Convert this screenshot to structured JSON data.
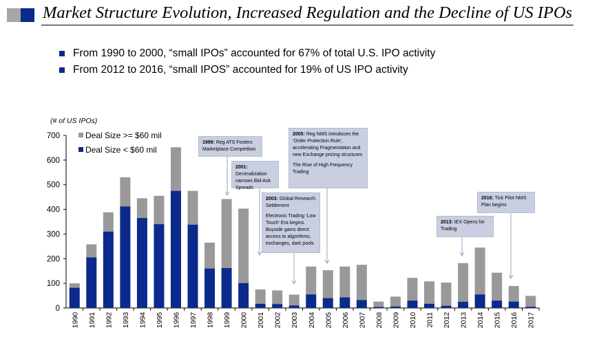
{
  "header": {
    "title": "Market Structure Evolution, Increased Regulation and the Decline of US IPOs"
  },
  "bullets": [
    "From 1990 to 2000, “small IPOs” accounted for 67% of total U.S. IPO activity",
    "From 2012 to 2016, “small IPOS” accounted for 19% of US IPO activity"
  ],
  "colors": {
    "small": "#0c2a8c",
    "large": "#999999",
    "note_bg": "#c9cfe1"
  },
  "annotations": [
    {
      "year": "1999:",
      "text": "Reg ATS Fosters Marketplace Competition"
    },
    {
      "year": "2001:",
      "text": "Decimalization narrows Bid-Ask Spreads"
    },
    {
      "year": "2003:",
      "text": "Global Research Settlement",
      "text2": "Electronic Trading ‘Low Touch’ Era begins. Buyside gains direct access to algorithms, exchanges, dark pools"
    },
    {
      "year": "2005:",
      "text": "Reg NMS introduces the ‘Order Protection Rule’, accelerating Fragmentation and new Exchange pricing structures",
      "text2": "The Rise of High Frequency Trading"
    },
    {
      "year": "2013:",
      "text": "IEX Opens for Trading"
    },
    {
      "year": "2016:",
      "text": "Tick Pilot NMS Plan begins"
    }
  ],
  "chart_data": {
    "type": "bar",
    "stacked": true,
    "ylabel": "(# of US IPOs)",
    "ylim": [
      0,
      700
    ],
    "yticks": [
      "0",
      "100",
      "200",
      "300",
      "400",
      "500",
      "600",
      "700"
    ],
    "categories": [
      "1990",
      "1991",
      "1992",
      "1993",
      "1994",
      "1995",
      "1996",
      "1997",
      "1998",
      "1999",
      "2000",
      "2001",
      "2002",
      "2003",
      "2004",
      "2005",
      "2006",
      "2007",
      "2008",
      "2009",
      "2010",
      "2011",
      "2012",
      "2013",
      "2014",
      "2015",
      "2016",
      "2017"
    ],
    "legend_position": "top-left",
    "series": [
      {
        "name": "Deal Size < $60 mil",
        "values": [
          82,
          205,
          310,
          412,
          365,
          340,
          475,
          338,
          160,
          162,
          101,
          17,
          16,
          10,
          55,
          40,
          43,
          32,
          4,
          6,
          30,
          17,
          9,
          25,
          55,
          30,
          26,
          5
        ]
      },
      {
        "name": "Deal Size >= $60 mil",
        "values": [
          18,
          53,
          78,
          118,
          80,
          115,
          177,
          137,
          105,
          280,
          302,
          58,
          55,
          44,
          113,
          113,
          125,
          143,
          22,
          40,
          92,
          91,
          94,
          157,
          190,
          113,
          63,
          44
        ]
      }
    ]
  }
}
